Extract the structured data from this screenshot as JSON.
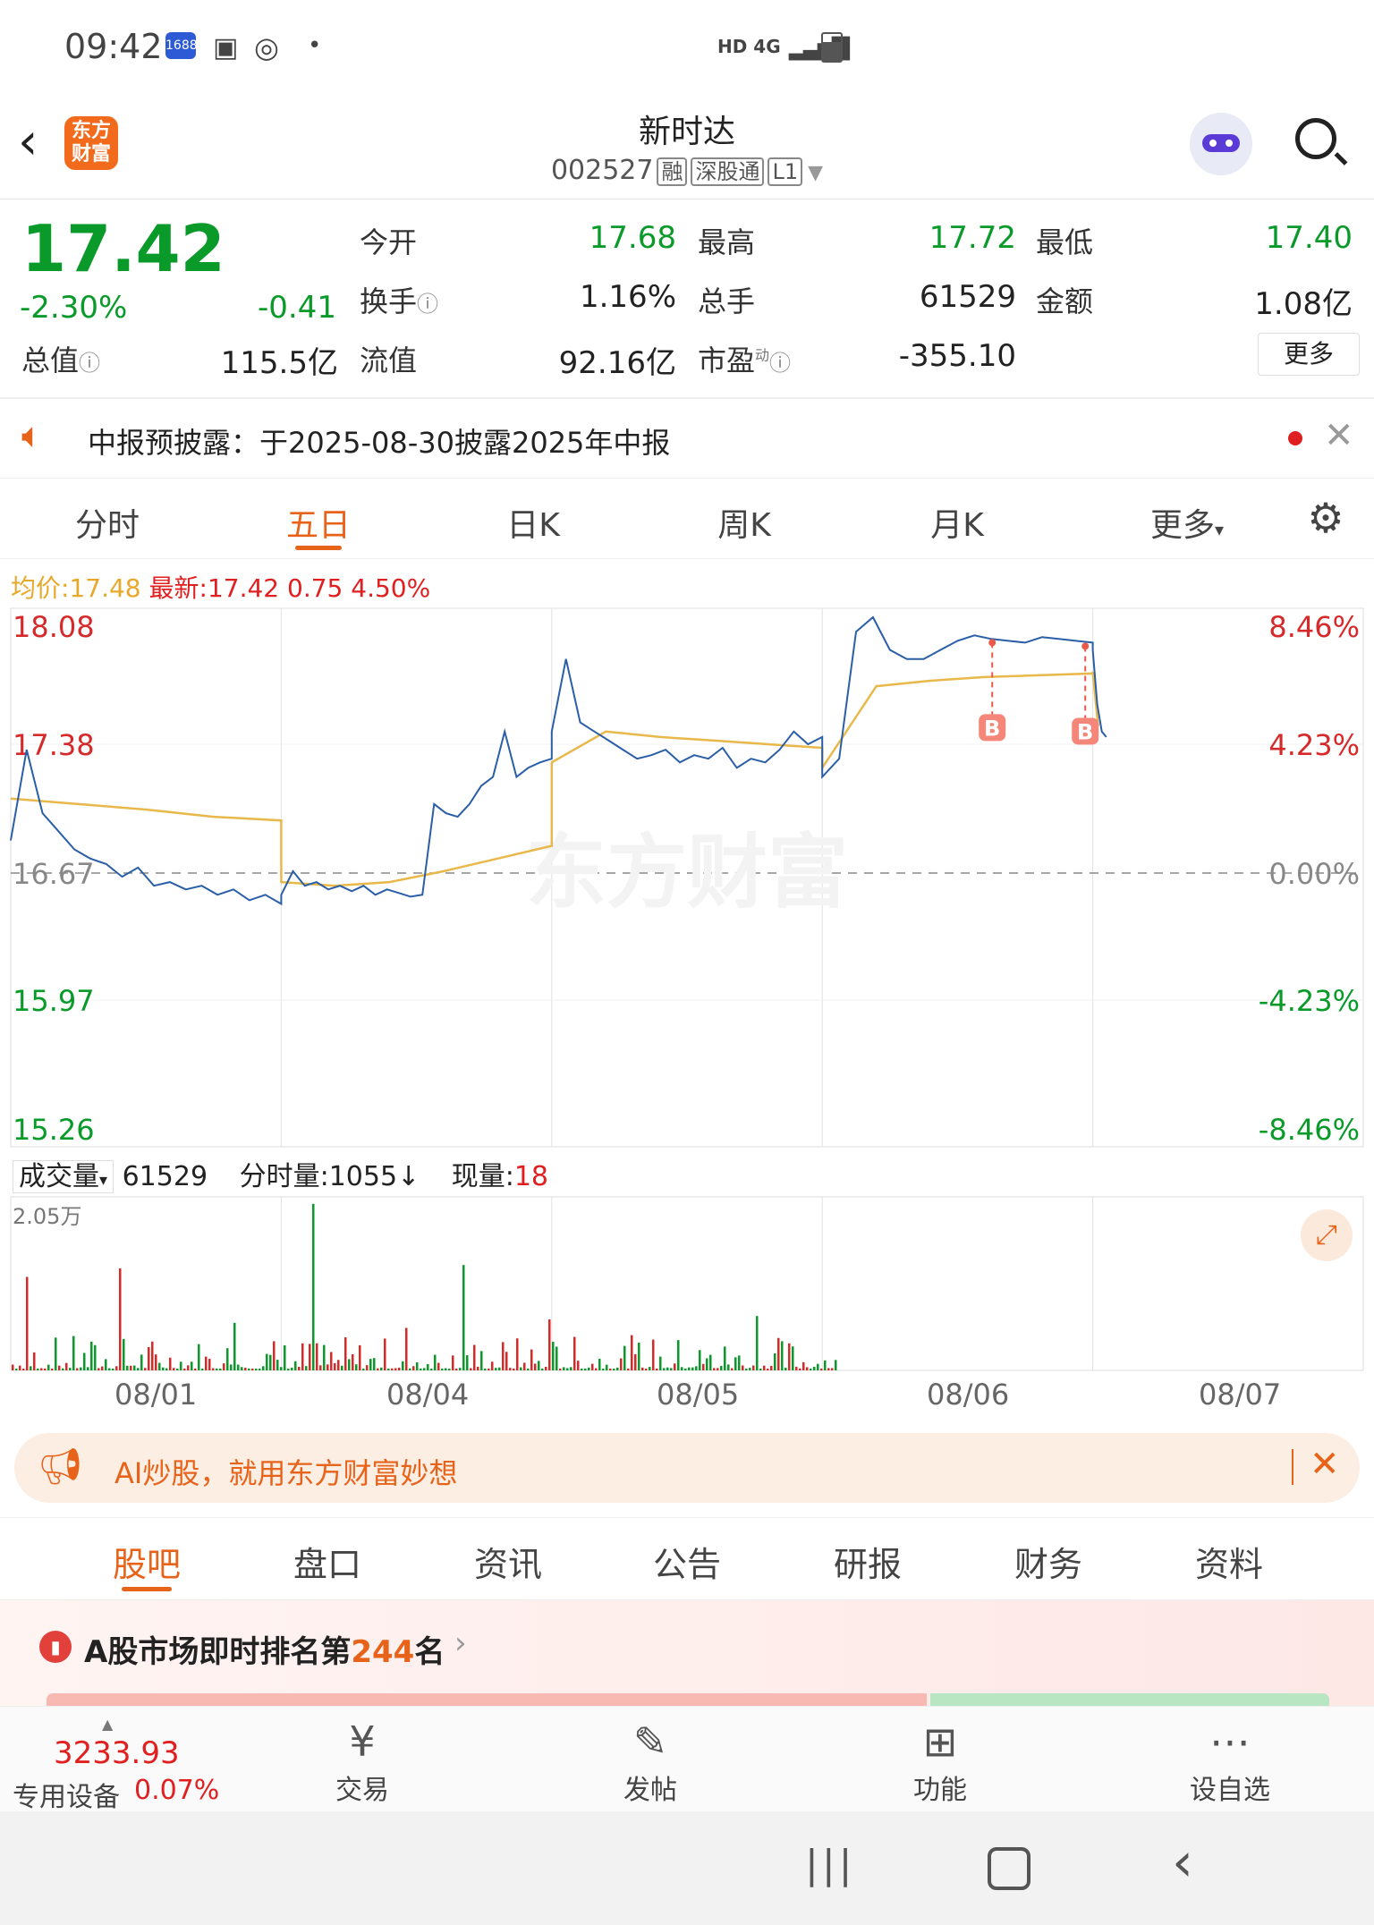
{
  "status": {
    "time": "09:42",
    "net": "HD 4G"
  },
  "header": {
    "logo_text": "东方财富",
    "title": "新时达",
    "code": "002527",
    "tags": [
      "融",
      "深股通",
      "L1"
    ]
  },
  "quote": {
    "price": "17.42",
    "pct": "-2.30%",
    "chg": "-0.41",
    "open_label": "今开",
    "open": "17.68",
    "high_label": "最高",
    "high": "17.72",
    "low_label": "最低",
    "low": "17.40",
    "turnover_label": "换手",
    "turnover": "1.16%",
    "vol_label": "总手",
    "vol": "61529",
    "amount_label": "金额",
    "amount": "1.08亿",
    "mktcap_label": "总值",
    "mktcap": "115.5亿",
    "float_label": "流值",
    "float": "92.16亿",
    "pe_label": "市盈",
    "pe_sup": "动",
    "pe": "-355.10",
    "more": "更多"
  },
  "notice": {
    "text": "中报预披露：于2025-08-30披露2025年中报"
  },
  "chart_tabs": [
    "分时",
    "五日",
    "日K",
    "周K",
    "月K",
    "更多"
  ],
  "active_tab": 1,
  "legend": {
    "avg_label": "均价:",
    "avg": "17.48",
    "last_label": "最新:",
    "last": "17.42",
    "chg": "0.75",
    "pct": "4.50%"
  },
  "chart_data": {
    "type": "line",
    "y_left": [
      "18.08",
      "17.38",
      "16.67",
      "15.97",
      "15.26"
    ],
    "y_right": [
      "8.46%",
      "4.23%",
      "0.00%",
      "-4.23%",
      "-8.46%"
    ],
    "ylim": [
      15.26,
      18.08
    ],
    "x_labels": [
      "08/01",
      "08/04",
      "08/05",
      "08/06",
      "08/07"
    ],
    "watermark": "东方财富",
    "markers": [
      "B",
      "B"
    ],
    "price_series": [
      [
        16.85,
        17.35,
        17.0,
        16.9,
        16.8,
        16.75,
        16.72,
        16.65,
        16.7,
        16.6,
        16.62,
        16.58,
        16.6,
        16.55,
        16.58,
        16.52,
        16.55,
        16.5
      ],
      [
        16.55,
        16.68,
        16.6,
        16.62,
        16.58,
        16.6,
        16.57,
        16.6,
        16.55,
        16.58,
        16.56,
        16.54,
        16.55,
        17.05,
        17.0,
        16.98,
        17.05,
        17.15,
        17.2,
        17.45,
        17.2,
        17.25,
        17.28,
        17.3
      ],
      [
        17.45,
        17.85,
        17.5,
        17.45,
        17.4,
        17.35,
        17.3,
        17.32,
        17.35,
        17.28,
        17.32,
        17.3,
        17.36,
        17.25,
        17.3,
        17.28,
        17.35,
        17.45,
        17.38,
        17.42
      ],
      [
        17.2,
        17.3,
        18.0,
        18.08,
        17.9,
        17.85,
        17.85,
        17.9,
        17.95,
        17.98,
        17.96,
        17.95,
        17.94,
        17.97,
        17.96,
        17.95,
        17.94
      ],
      [
        17.9,
        17.6,
        17.45,
        17.42
      ]
    ],
    "avg_series": [
      [
        17.08,
        17.05,
        17.02,
        16.98,
        16.96
      ],
      [
        16.62,
        16.6,
        16.62,
        16.68,
        16.75,
        16.82
      ],
      [
        17.28,
        17.45,
        17.42,
        17.4,
        17.38,
        17.36
      ],
      [
        17.25,
        17.7,
        17.73,
        17.75,
        17.76,
        17.77
      ],
      [
        17.78,
        17.48
      ]
    ]
  },
  "volume": {
    "label": "成交量",
    "total": "61529",
    "fen_label": "分时量:",
    "fen": "1055",
    "now_label": "现量:",
    "now": "18",
    "max": "2.05万"
  },
  "banner": {
    "text": "AI炒股，就用东方财富妙想"
  },
  "sub_tabs": [
    "股吧",
    "盘口",
    "资讯",
    "公告",
    "研报",
    "财务",
    "资料"
  ],
  "rank": {
    "prefix": "A股市场即时排名第",
    "num": "244",
    "suffix": "名"
  },
  "bottom": {
    "index": "3233.93",
    "index_name": "专用设备",
    "index_pct": "0.07%",
    "items": [
      "交易",
      "发帖",
      "功能",
      "设自选"
    ]
  }
}
